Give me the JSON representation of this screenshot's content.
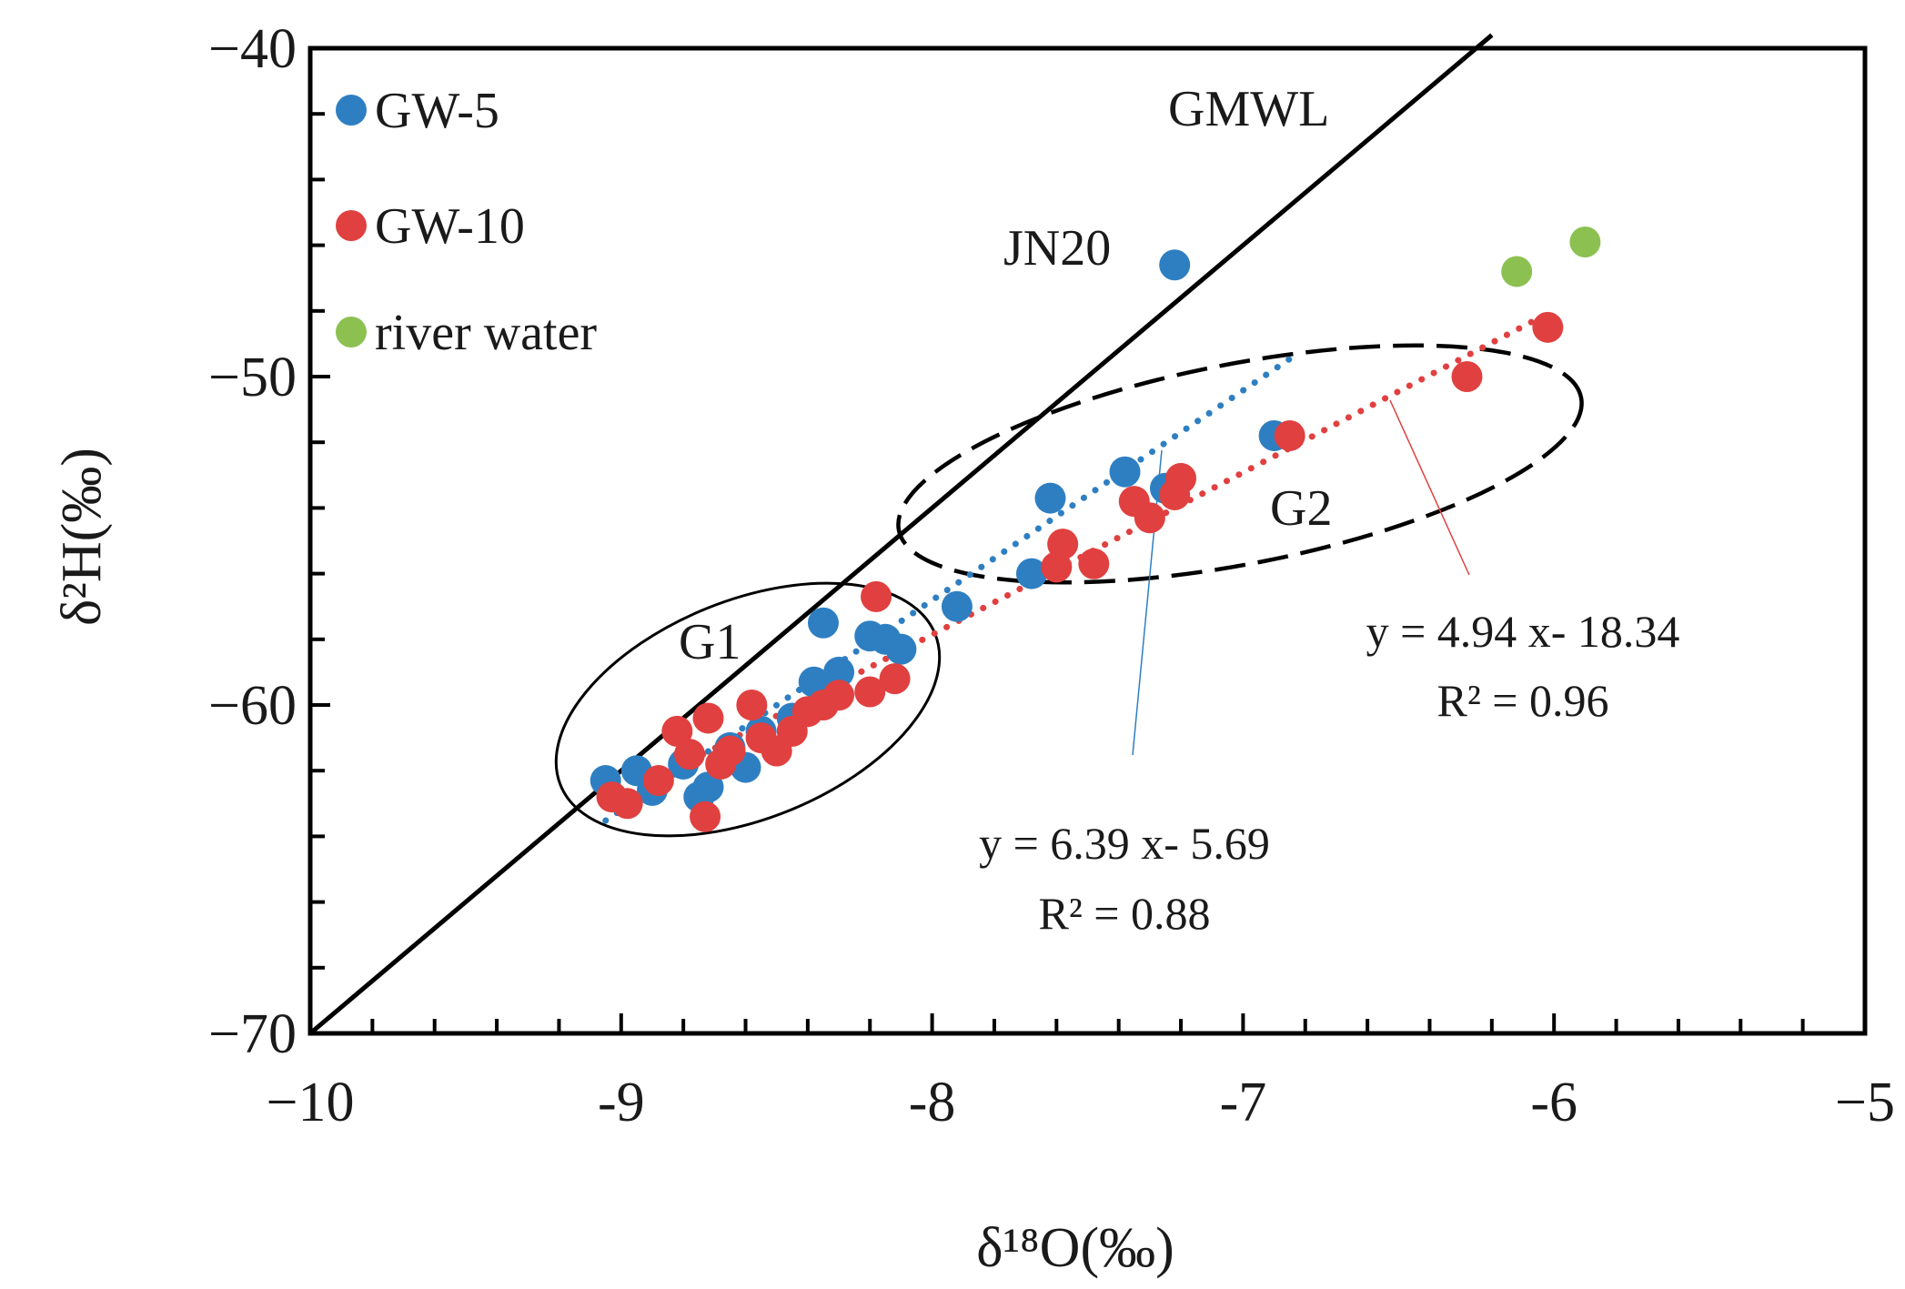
{
  "chart_data": {
    "type": "scatter",
    "title": "",
    "xlabel": "δ¹⁸O(‰)",
    "ylabel": "δ²H(‰)",
    "xlim": [
      -10,
      -5
    ],
    "ylim": [
      -70,
      -40
    ],
    "xticks": [
      -10,
      -9,
      -8,
      -7,
      -6,
      -5
    ],
    "xtick_labels": [
      "−10",
      "-9",
      "-8",
      "-7",
      "-6",
      "−5"
    ],
    "yticks": [
      -70,
      -60,
      -50,
      -40
    ],
    "ytick_labels": [
      "−70",
      "−60",
      "−50",
      "−40"
    ],
    "legend_position": "top-left",
    "grid": false,
    "series": [
      {
        "name": "GW-5",
        "color": "#2e7fc2",
        "x": [
          -9.05,
          -8.95,
          -8.9,
          -8.8,
          -8.75,
          -8.72,
          -8.65,
          -8.6,
          -8.55,
          -8.45,
          -8.38,
          -8.32,
          -8.3,
          -8.35,
          -8.2,
          -8.15,
          -8.1,
          -7.92,
          -7.68,
          -7.62,
          -7.38,
          -7.25,
          -6.9,
          -7.22
        ],
        "y": [
          -62.3,
          -62.0,
          -62.6,
          -61.8,
          -62.8,
          -62.5,
          -61.3,
          -61.9,
          -60.8,
          -60.4,
          -59.3,
          -59.4,
          -59.0,
          -57.5,
          -57.9,
          -58.0,
          -58.3,
          -57.0,
          -56.0,
          -53.7,
          -52.9,
          -53.4,
          -51.8,
          -46.6
        ]
      },
      {
        "name": "GW-10",
        "color": "#e0403f",
        "x": [
          -9.03,
          -8.98,
          -8.88,
          -8.82,
          -8.78,
          -8.72,
          -8.68,
          -8.65,
          -8.58,
          -8.55,
          -8.5,
          -8.45,
          -8.4,
          -8.35,
          -8.3,
          -8.2,
          -8.18,
          -8.12,
          -7.6,
          -7.58,
          -7.48,
          -7.35,
          -7.3,
          -7.22,
          -7.2,
          -6.85,
          -6.28,
          -6.02,
          -8.73
        ],
        "y": [
          -62.8,
          -63.0,
          -62.3,
          -60.8,
          -61.5,
          -60.4,
          -61.8,
          -61.4,
          -60.0,
          -61.0,
          -61.4,
          -60.8,
          -60.2,
          -60.0,
          -59.7,
          -59.6,
          -56.7,
          -59.2,
          -55.8,
          -55.1,
          -55.7,
          -53.8,
          -54.3,
          -53.6,
          -53.1,
          -51.8,
          -50.0,
          -48.5,
          -63.4
        ]
      },
      {
        "name": "river water",
        "color": "#8cc152",
        "x": [
          -6.12,
          -5.9
        ],
        "y": [
          -46.8,
          -45.9
        ]
      }
    ],
    "lines": [
      {
        "name": "GMWL",
        "slope": 8,
        "intercept": 10,
        "x_range": [
          -10,
          -6.2
        ],
        "style": "solid",
        "color": "#000000"
      },
      {
        "name": "GW-5 fit",
        "slope": 6.39,
        "intercept": -5.69,
        "x_range": [
          -9.05,
          -6.85
        ],
        "style": "dotted",
        "color": "#2e7fc2"
      },
      {
        "name": "GW-10 fit",
        "slope": 4.94,
        "intercept": -18.34,
        "x_range": [
          -9.05,
          -6.0
        ],
        "style": "dotted",
        "color": "#e0403f"
      }
    ],
    "annotations": {
      "gmwl": "GMWL",
      "jn20": "JN20",
      "g1": "G1",
      "g2": "G2",
      "eq_gw5": "y = 6.39 x- 5.69",
      "r2_gw5": "R² = 0.88",
      "eq_gw10": "y = 4.94 x- 18.34",
      "r2_gw10": "R² = 0.96"
    },
    "groups": [
      {
        "name": "G1",
        "center": [
          -8.45,
          -60.2
        ],
        "style": "solid"
      },
      {
        "name": "G2",
        "center": [
          -7.05,
          -53.6
        ],
        "style": "dashed"
      }
    ]
  }
}
